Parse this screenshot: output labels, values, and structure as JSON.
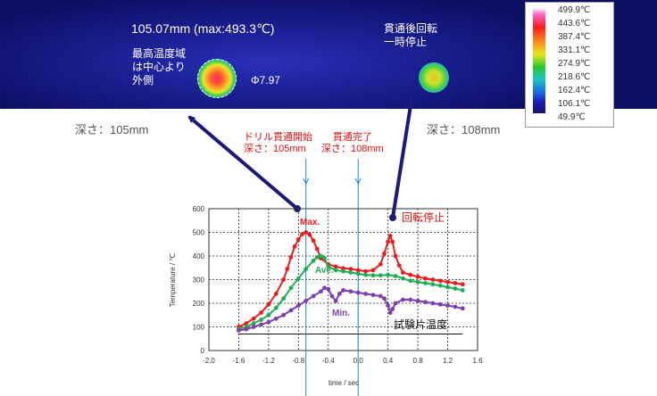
{
  "thermal": {
    "left_title": "105.07mm (max:493.3℃)",
    "left_note": "最高温度域は中心より外側",
    "phi_label": "Φ7.97",
    "right_note": "貫通後回転一時停止"
  },
  "colorbar": {
    "labels": [
      "499.9℃",
      "443.6℃",
      "387.4℃",
      "331.1℃",
      "274.9℃",
      "218.6℃",
      "162.4℃",
      "106.1℃",
      "49.9℃"
    ]
  },
  "depth_left": "深さ：105mm",
  "depth_right": "深さ：108mm",
  "annotations": {
    "drill_start_line1": "ドリル貫通開始",
    "drill_start_line2": "深さ：105mm",
    "pierce_done_line1": "貫通完了",
    "pierce_done_line2": "深さ：108mm",
    "rotation_stop": "回転停止",
    "specimen_temp": "試験片温度"
  },
  "chart_data": {
    "type": "line",
    "xlabel": "time / sec",
    "ylabel": "Temperature / ℃",
    "xlim": [
      -2.0,
      1.6
    ],
    "ylim": [
      0,
      600
    ],
    "xticks": [
      -2.0,
      -1.6,
      -1.2,
      -0.8,
      -0.4,
      0.0,
      0.4,
      0.8,
      1.2,
      1.6
    ],
    "yticks": [
      0,
      100,
      200,
      300,
      400,
      500,
      600
    ],
    "grid": true,
    "vlines": [
      -0.7,
      0.0
    ],
    "specimen_line_y": 70,
    "colors": {
      "max": "#ee1c1c",
      "ave": "#1fae55",
      "min": "#7e3fb0",
      "vline": "#1e88c8"
    },
    "series": [
      {
        "name": "Max.",
        "color": "#ee1c1c",
        "x": [
          -1.6,
          -1.5,
          -1.4,
          -1.3,
          -1.2,
          -1.1,
          -1.0,
          -0.95,
          -0.9,
          -0.85,
          -0.8,
          -0.75,
          -0.7,
          -0.65,
          -0.6,
          -0.55,
          -0.5,
          -0.4,
          -0.3,
          -0.2,
          -0.1,
          0.0,
          0.1,
          0.2,
          0.3,
          0.35,
          0.4,
          0.43,
          0.46,
          0.5,
          0.55,
          0.6,
          0.7,
          0.8,
          0.9,
          1.0,
          1.1,
          1.2,
          1.3,
          1.4
        ],
        "y": [
          100,
          115,
          135,
          160,
          195,
          240,
          300,
          345,
          395,
          440,
          470,
          492,
          500,
          490,
          465,
          430,
          390,
          365,
          355,
          348,
          345,
          340,
          335,
          340,
          365,
          410,
          460,
          485,
          460,
          400,
          360,
          330,
          320,
          312,
          305,
          300,
          295,
          290,
          285,
          280
        ]
      },
      {
        "name": "Ave.",
        "color": "#1fae55",
        "x": [
          -1.6,
          -1.5,
          -1.4,
          -1.3,
          -1.2,
          -1.1,
          -1.0,
          -0.9,
          -0.8,
          -0.7,
          -0.6,
          -0.55,
          -0.5,
          -0.45,
          -0.4,
          -0.3,
          -0.2,
          -0.1,
          0.0,
          0.1,
          0.2,
          0.3,
          0.4,
          0.5,
          0.6,
          0.7,
          0.8,
          0.9,
          1.0,
          1.1,
          1.2,
          1.3,
          1.4
        ],
        "y": [
          90,
          100,
          115,
          130,
          150,
          180,
          220,
          265,
          305,
          345,
          380,
          395,
          400,
          390,
          355,
          340,
          335,
          330,
          325,
          320,
          318,
          318,
          320,
          315,
          305,
          295,
          290,
          285,
          280,
          275,
          268,
          262,
          255
        ]
      },
      {
        "name": "Min.",
        "color": "#7e3fb0",
        "x": [
          -1.6,
          -1.5,
          -1.4,
          -1.3,
          -1.2,
          -1.1,
          -1.0,
          -0.9,
          -0.8,
          -0.7,
          -0.6,
          -0.5,
          -0.45,
          -0.4,
          -0.35,
          -0.3,
          -0.25,
          -0.2,
          -0.1,
          0.0,
          0.1,
          0.2,
          0.3,
          0.35,
          0.4,
          0.43,
          0.46,
          0.5,
          0.6,
          0.7,
          0.8,
          0.9,
          1.0,
          1.1,
          1.2,
          1.3,
          1.4
        ],
        "y": [
          85,
          90,
          100,
          110,
          120,
          135,
          150,
          170,
          190,
          210,
          230,
          250,
          265,
          260,
          230,
          210,
          240,
          255,
          250,
          245,
          240,
          235,
          230,
          220,
          190,
          160,
          175,
          200,
          215,
          215,
          210,
          205,
          200,
          195,
          190,
          185,
          178
        ]
      }
    ]
  }
}
